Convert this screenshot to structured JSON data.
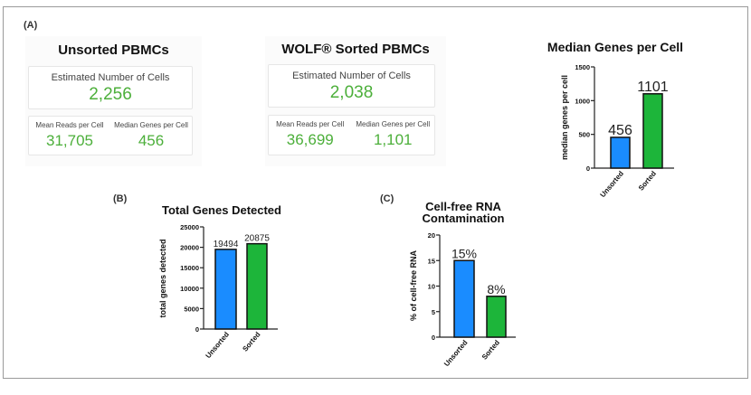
{
  "panel_labels": {
    "a": "(A)",
    "b": "(B)",
    "c": "(C)"
  },
  "summaries": [
    {
      "title": "Unsorted PBMCs",
      "est_label": "Estimated Number of Cells",
      "est_value": "2,256",
      "reads_label": "Mean Reads per Cell",
      "reads_value": "31,705",
      "genes_label": "Median Genes per Cell",
      "genes_value": "456"
    },
    {
      "title": "WOLF® Sorted PBMCs",
      "est_label": "Estimated Number of Cells",
      "est_value": "2,038",
      "reads_label": "Mean Reads per Cell",
      "reads_value": "36,699",
      "genes_label": "Median Genes per Cell",
      "genes_value": "1,101"
    }
  ],
  "colors": {
    "unsorted": "#1a8cff",
    "sorted": "#1db53a",
    "value_green": "#4caf3a"
  },
  "chart_data": [
    {
      "type": "bar",
      "title": "Median Genes per Cell",
      "ylabel": "median genes per cell",
      "xlabel": "",
      "categories": [
        "Unsorted",
        "Sorted"
      ],
      "values": [
        456,
        1101
      ],
      "data_labels": [
        "456",
        "1101"
      ],
      "ylim": [
        0,
        1500
      ],
      "yticks": [
        0,
        500,
        1000,
        1500
      ],
      "grid": false
    },
    {
      "type": "bar",
      "title": "Total Genes Detected",
      "ylabel": "total genes detected",
      "xlabel": "",
      "categories": [
        "Unsorted",
        "Sorted"
      ],
      "values": [
        19494,
        20875
      ],
      "data_labels": [
        "19494",
        "20875"
      ],
      "ylim": [
        0,
        25000
      ],
      "yticks": [
        0,
        5000,
        10000,
        15000,
        20000,
        25000
      ],
      "grid": false
    },
    {
      "type": "bar",
      "title": "Cell-free RNA Contamination",
      "ylabel": "% of cell-free RNA",
      "xlabel": "",
      "categories": [
        "Unsorted",
        "Sorted"
      ],
      "values": [
        15,
        8
      ],
      "data_labels": [
        "15%",
        "8%"
      ],
      "ylim": [
        0,
        20
      ],
      "yticks": [
        0,
        5,
        10,
        15,
        20
      ],
      "grid": false
    }
  ]
}
